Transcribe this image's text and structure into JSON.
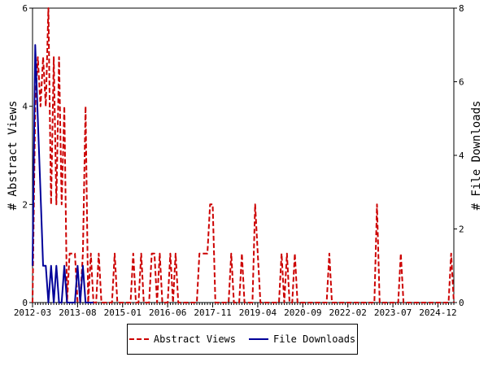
{
  "chart_data": {
    "type": "line",
    "x_tick_labels": [
      "2012-03",
      "2013-08",
      "2015-01",
      "2016-06",
      "2017-11",
      "2019-04",
      "2020-09",
      "2022-02",
      "2023-07",
      "2024-12"
    ],
    "x_start": "2012-03",
    "x_end": "2025-06",
    "ylabel_left": "# Abstract Views",
    "ylabel_right": "# File Downloads",
    "ylim_left": [
      0,
      6
    ],
    "ylim_right": [
      0,
      8
    ],
    "yticks_left": [
      "0",
      "2",
      "4",
      "6"
    ],
    "yticks_right": [
      "0",
      "2",
      "4",
      "6",
      "8"
    ],
    "grid": false,
    "legend_position": "bottom",
    "series": [
      {
        "name": "Abstract Views",
        "axis": "left",
        "color": "#cc0000",
        "style": "dashed",
        "points": [
          [
            "2012-03",
            0
          ],
          [
            "2012-04",
            4
          ],
          [
            "2012-05",
            5
          ],
          [
            "2012-06",
            4
          ],
          [
            "2012-07",
            5
          ],
          [
            "2012-08",
            4
          ],
          [
            "2012-09",
            6
          ],
          [
            "2012-10",
            2
          ],
          [
            "2012-11",
            5
          ],
          [
            "2012-12",
            2
          ],
          [
            "2013-01",
            5
          ],
          [
            "2013-02",
            2
          ],
          [
            "2013-03",
            4
          ],
          [
            "2013-04",
            0
          ],
          [
            "2013-05",
            1
          ],
          [
            "2013-06",
            1
          ],
          [
            "2013-07",
            1
          ],
          [
            "2013-08",
            0
          ],
          [
            "2013-09",
            0
          ],
          [
            "2013-10",
            1
          ],
          [
            "2013-11",
            4
          ],
          [
            "2013-12",
            0
          ],
          [
            "2014-01",
            1
          ],
          [
            "2014-02",
            0
          ],
          [
            "2014-03",
            0
          ],
          [
            "2014-04",
            1
          ],
          [
            "2014-05",
            0
          ],
          [
            "2014-06",
            0
          ],
          [
            "2014-07",
            0
          ],
          [
            "2014-08",
            0
          ],
          [
            "2014-09",
            0
          ],
          [
            "2014-10",
            1
          ],
          [
            "2014-11",
            0
          ],
          [
            "2014-12",
            0
          ],
          [
            "2015-01",
            0
          ],
          [
            "2015-02",
            0
          ],
          [
            "2015-03",
            0
          ],
          [
            "2015-04",
            0
          ],
          [
            "2015-05",
            1
          ],
          [
            "2015-06",
            0
          ],
          [
            "2015-07",
            0
          ],
          [
            "2015-08",
            1
          ],
          [
            "2015-09",
            0
          ],
          [
            "2015-10",
            0
          ],
          [
            "2015-11",
            0
          ],
          [
            "2015-12",
            1
          ],
          [
            "2016-01",
            1
          ],
          [
            "2016-02",
            0
          ],
          [
            "2016-03",
            1
          ],
          [
            "2016-04",
            0
          ],
          [
            "2016-05",
            0
          ],
          [
            "2016-06",
            0
          ],
          [
            "2016-07",
            1
          ],
          [
            "2016-08",
            0
          ],
          [
            "2016-09",
            1
          ],
          [
            "2016-10",
            0
          ],
          [
            "2016-11",
            0
          ],
          [
            "2016-12",
            0
          ],
          [
            "2017-01",
            0
          ],
          [
            "2017-02",
            0
          ],
          [
            "2017-03",
            0
          ],
          [
            "2017-04",
            0
          ],
          [
            "2017-05",
            0
          ],
          [
            "2017-06",
            1
          ],
          [
            "2017-07",
            1
          ],
          [
            "2017-08",
            1
          ],
          [
            "2017-09",
            1
          ],
          [
            "2017-10",
            2
          ],
          [
            "2017-11",
            2
          ],
          [
            "2017-12",
            0
          ],
          [
            "2018-01",
            0
          ],
          [
            "2018-02",
            0
          ],
          [
            "2018-03",
            0
          ],
          [
            "2018-04",
            0
          ],
          [
            "2018-05",
            0
          ],
          [
            "2018-06",
            1
          ],
          [
            "2018-07",
            0
          ],
          [
            "2018-08",
            0
          ],
          [
            "2018-09",
            0
          ],
          [
            "2018-10",
            1
          ],
          [
            "2018-11",
            0
          ],
          [
            "2018-12",
            0
          ],
          [
            "2019-01",
            0
          ],
          [
            "2019-02",
            0
          ],
          [
            "2019-03",
            2
          ],
          [
            "2019-04",
            1
          ],
          [
            "2019-05",
            0
          ],
          [
            "2019-06",
            0
          ],
          [
            "2019-07",
            0
          ],
          [
            "2019-08",
            0
          ],
          [
            "2019-09",
            0
          ],
          [
            "2019-10",
            0
          ],
          [
            "2019-11",
            0
          ],
          [
            "2019-12",
            0
          ],
          [
            "2020-01",
            1
          ],
          [
            "2020-02",
            0
          ],
          [
            "2020-03",
            1
          ],
          [
            "2020-04",
            0
          ],
          [
            "2020-05",
            0
          ],
          [
            "2020-06",
            1
          ],
          [
            "2020-07",
            0
          ],
          [
            "2020-08",
            0
          ],
          [
            "2020-09",
            0
          ],
          [
            "2020-10",
            0
          ],
          [
            "2020-11",
            0
          ],
          [
            "2020-12",
            0
          ],
          [
            "2021-01",
            0
          ],
          [
            "2021-02",
            0
          ],
          [
            "2021-03",
            0
          ],
          [
            "2021-04",
            0
          ],
          [
            "2021-05",
            0
          ],
          [
            "2021-06",
            0
          ],
          [
            "2021-07",
            1
          ],
          [
            "2021-08",
            0
          ],
          [
            "2021-09",
            0
          ],
          [
            "2021-10",
            0
          ],
          [
            "2021-11",
            0
          ],
          [
            "2021-12",
            0
          ],
          [
            "2022-01",
            0
          ],
          [
            "2022-02",
            0
          ],
          [
            "2022-03",
            0
          ],
          [
            "2022-04",
            0
          ],
          [
            "2022-05",
            0
          ],
          [
            "2022-06",
            0
          ],
          [
            "2022-07",
            0
          ],
          [
            "2022-08",
            0
          ],
          [
            "2022-09",
            0
          ],
          [
            "2022-10",
            0
          ],
          [
            "2022-11",
            0
          ],
          [
            "2022-12",
            0
          ],
          [
            "2023-01",
            2
          ],
          [
            "2023-02",
            0
          ],
          [
            "2023-03",
            0
          ],
          [
            "2023-04",
            0
          ],
          [
            "2023-05",
            0
          ],
          [
            "2023-06",
            0
          ],
          [
            "2023-07",
            0
          ],
          [
            "2023-08",
            0
          ],
          [
            "2023-09",
            0
          ],
          [
            "2023-10",
            1
          ],
          [
            "2023-11",
            0
          ],
          [
            "2023-12",
            0
          ],
          [
            "2024-01",
            0
          ],
          [
            "2024-02",
            0
          ],
          [
            "2024-03",
            0
          ],
          [
            "2024-04",
            0
          ],
          [
            "2024-05",
            0
          ],
          [
            "2024-06",
            0
          ],
          [
            "2024-07",
            0
          ],
          [
            "2024-08",
            0
          ],
          [
            "2024-09",
            0
          ],
          [
            "2024-10",
            0
          ],
          [
            "2024-11",
            0
          ],
          [
            "2024-12",
            0
          ],
          [
            "2025-01",
            0
          ],
          [
            "2025-02",
            0
          ],
          [
            "2025-03",
            0
          ],
          [
            "2025-04",
            0
          ],
          [
            "2025-05",
            1
          ],
          [
            "2025-06",
            0
          ]
        ]
      },
      {
        "name": "File Downloads",
        "axis": "right",
        "color": "#000099",
        "style": "solid",
        "points": [
          [
            "2012-03",
            1
          ],
          [
            "2012-04",
            7
          ],
          [
            "2012-05",
            5
          ],
          [
            "2012-06",
            3
          ],
          [
            "2012-07",
            1
          ],
          [
            "2012-08",
            1
          ],
          [
            "2012-09",
            0
          ],
          [
            "2012-10",
            1
          ],
          [
            "2012-11",
            0
          ],
          [
            "2012-12",
            1
          ],
          [
            "2013-01",
            0
          ],
          [
            "2013-02",
            0
          ],
          [
            "2013-03",
            1
          ],
          [
            "2013-04",
            0
          ],
          [
            "2013-05",
            0
          ],
          [
            "2013-06",
            0
          ],
          [
            "2013-07",
            0
          ],
          [
            "2013-08",
            1
          ],
          [
            "2013-09",
            0
          ],
          [
            "2013-10",
            1
          ],
          [
            "2013-11",
            0
          ],
          [
            "2013-12",
            0
          ],
          [
            "2014-01",
            0
          ],
          [
            "2014-02",
            0
          ]
        ]
      }
    ]
  }
}
